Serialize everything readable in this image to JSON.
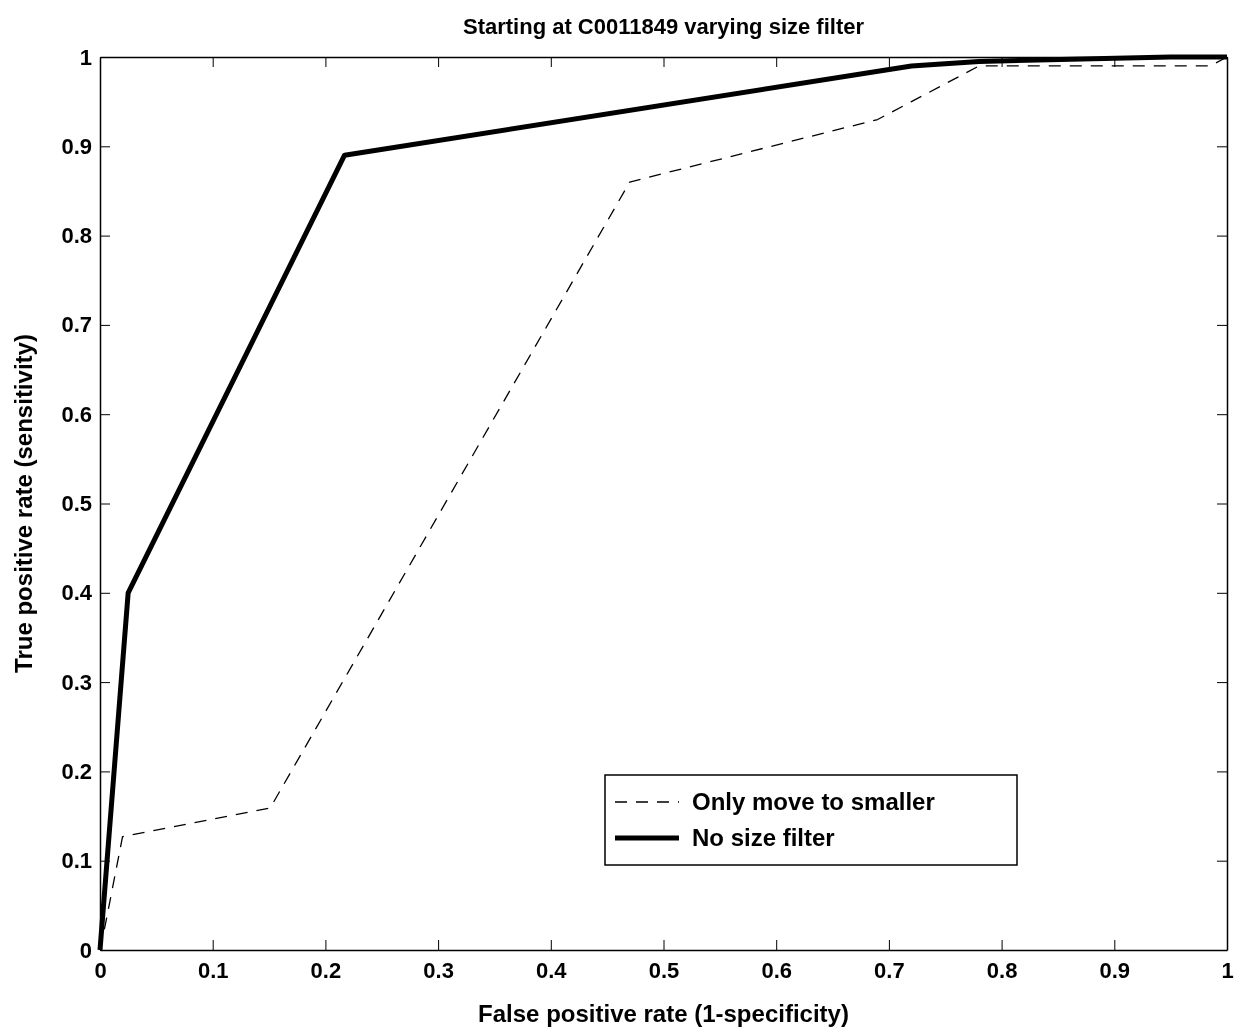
{
  "chart_data": {
    "type": "line",
    "title": "Starting at C0011849 varying size filter",
    "xlabel": "False positive rate (1-specificity)",
    "ylabel": "True positive rate (sensitivity)",
    "xlim": [
      0,
      1
    ],
    "ylim": [
      0,
      1
    ],
    "xticks": [
      0,
      0.1,
      0.2,
      0.3,
      0.4,
      0.5,
      0.6,
      0.7,
      0.8,
      0.9,
      1
    ],
    "yticks": [
      0,
      0.1,
      0.2,
      0.3,
      0.4,
      0.5,
      0.6,
      0.7,
      0.8,
      0.9,
      1
    ],
    "legend": "bottom right",
    "grid": false,
    "marker": "none",
    "series": [
      {
        "name": "Only move to smaller",
        "color": "#000000",
        "line_style": "dashed",
        "x": [
          0,
          0.005,
          0.02,
          0.151,
          0.47,
          0.69,
          0.72,
          0.78,
          0.985,
          1
        ],
        "values": [
          0,
          0.03,
          0.127,
          0.159,
          0.86,
          0.93,
          0.95,
          0.99,
          0.99,
          1
        ]
      },
      {
        "name": "No size filter",
        "color": "#000000",
        "line_style": "solid",
        "x": [
          0,
          0.025,
          0.217,
          0.72,
          0.78,
          0.95,
          1
        ],
        "values": [
          0,
          0.4,
          0.89,
          0.99,
          0.995,
          1,
          1
        ]
      }
    ]
  }
}
